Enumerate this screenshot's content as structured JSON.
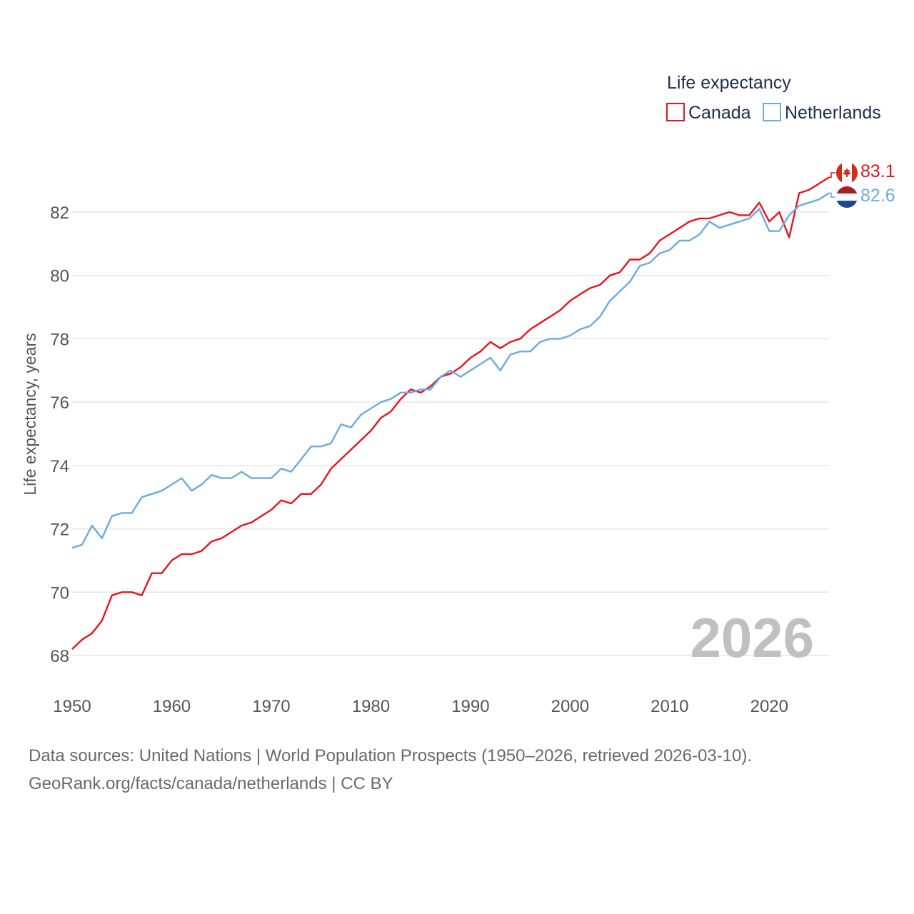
{
  "colors": {
    "canada": "#e8141c",
    "netherlands": "#6aabe4",
    "grid": "#e6e6e6",
    "year_stamp": "#c0c0c0"
  },
  "legend": {
    "title": "Life expectancy",
    "items": [
      "Canada",
      "Netherlands"
    ]
  },
  "year_stamp": "2026",
  "end_labels": {
    "canada": "83.1",
    "netherlands": "82.6"
  },
  "flags": {
    "canada": "canada-flag-icon",
    "netherlands": "netherlands-flag-icon"
  },
  "footer": {
    "line1": "Data sources: United Nations | World Population Prospects (1950–2026, retrieved 2026-03-10).",
    "line2": "GeoRank.org/facts/canada/netherlands | CC BY"
  },
  "chart_data": {
    "type": "line",
    "title": "",
    "xlabel": "",
    "ylabel": "Life expectancy, years",
    "xlim": [
      1950,
      2026
    ],
    "ylim": [
      67,
      84
    ],
    "x_ticks": [
      1950,
      1960,
      1970,
      1980,
      1990,
      2000,
      2010,
      2020
    ],
    "y_ticks": [
      68,
      70,
      72,
      74,
      76,
      78,
      80,
      82
    ],
    "grid": true,
    "legend_position": "top-right",
    "x": [
      1950,
      1951,
      1952,
      1953,
      1954,
      1955,
      1956,
      1957,
      1958,
      1959,
      1960,
      1961,
      1962,
      1963,
      1964,
      1965,
      1966,
      1967,
      1968,
      1969,
      1970,
      1971,
      1972,
      1973,
      1974,
      1975,
      1976,
      1977,
      1978,
      1979,
      1980,
      1981,
      1982,
      1983,
      1984,
      1985,
      1986,
      1987,
      1988,
      1989,
      1990,
      1991,
      1992,
      1993,
      1994,
      1995,
      1996,
      1997,
      1998,
      1999,
      2000,
      2001,
      2002,
      2003,
      2004,
      2005,
      2006,
      2007,
      2008,
      2009,
      2010,
      2011,
      2012,
      2013,
      2014,
      2015,
      2016,
      2017,
      2018,
      2019,
      2020,
      2021,
      2022,
      2023,
      2024,
      2025,
      2026
    ],
    "series": [
      {
        "name": "Canada",
        "color_key": "canada",
        "values": [
          68.2,
          68.5,
          68.7,
          69.1,
          69.9,
          70.0,
          70.0,
          69.9,
          70.6,
          70.6,
          71.0,
          71.2,
          71.2,
          71.3,
          71.6,
          71.7,
          71.9,
          72.1,
          72.2,
          72.4,
          72.6,
          72.9,
          72.8,
          73.1,
          73.1,
          73.4,
          73.9,
          74.2,
          74.5,
          74.8,
          75.1,
          75.5,
          75.7,
          76.1,
          76.4,
          76.3,
          76.5,
          76.8,
          76.9,
          77.1,
          77.4,
          77.6,
          77.9,
          77.7,
          77.9,
          78.0,
          78.3,
          78.5,
          78.7,
          78.9,
          79.2,
          79.4,
          79.6,
          79.7,
          80.0,
          80.1,
          80.5,
          80.5,
          80.7,
          81.1,
          81.3,
          81.5,
          81.7,
          81.8,
          81.8,
          81.9,
          82.0,
          81.9,
          81.9,
          82.3,
          81.7,
          82.0,
          81.2,
          82.6,
          82.7,
          82.9,
          83.1
        ]
      },
      {
        "name": "Netherlands",
        "color_key": "netherlands",
        "values": [
          71.4,
          71.5,
          72.1,
          71.7,
          72.4,
          72.5,
          72.5,
          73.0,
          73.1,
          73.2,
          73.4,
          73.6,
          73.2,
          73.4,
          73.7,
          73.6,
          73.6,
          73.8,
          73.6,
          73.6,
          73.6,
          73.9,
          73.8,
          74.2,
          74.6,
          74.6,
          74.7,
          75.3,
          75.2,
          75.6,
          75.8,
          76.0,
          76.1,
          76.3,
          76.3,
          76.4,
          76.4,
          76.8,
          77.0,
          76.8,
          77.0,
          77.2,
          77.4,
          77.0,
          77.5,
          77.6,
          77.6,
          77.9,
          78.0,
          78.0,
          78.1,
          78.3,
          78.4,
          78.7,
          79.2,
          79.5,
          79.8,
          80.3,
          80.4,
          80.7,
          80.8,
          81.1,
          81.1,
          81.3,
          81.7,
          81.5,
          81.6,
          81.7,
          81.8,
          82.1,
          81.4,
          81.4,
          81.9,
          82.2,
          82.3,
          82.4,
          82.6
        ]
      }
    ]
  }
}
